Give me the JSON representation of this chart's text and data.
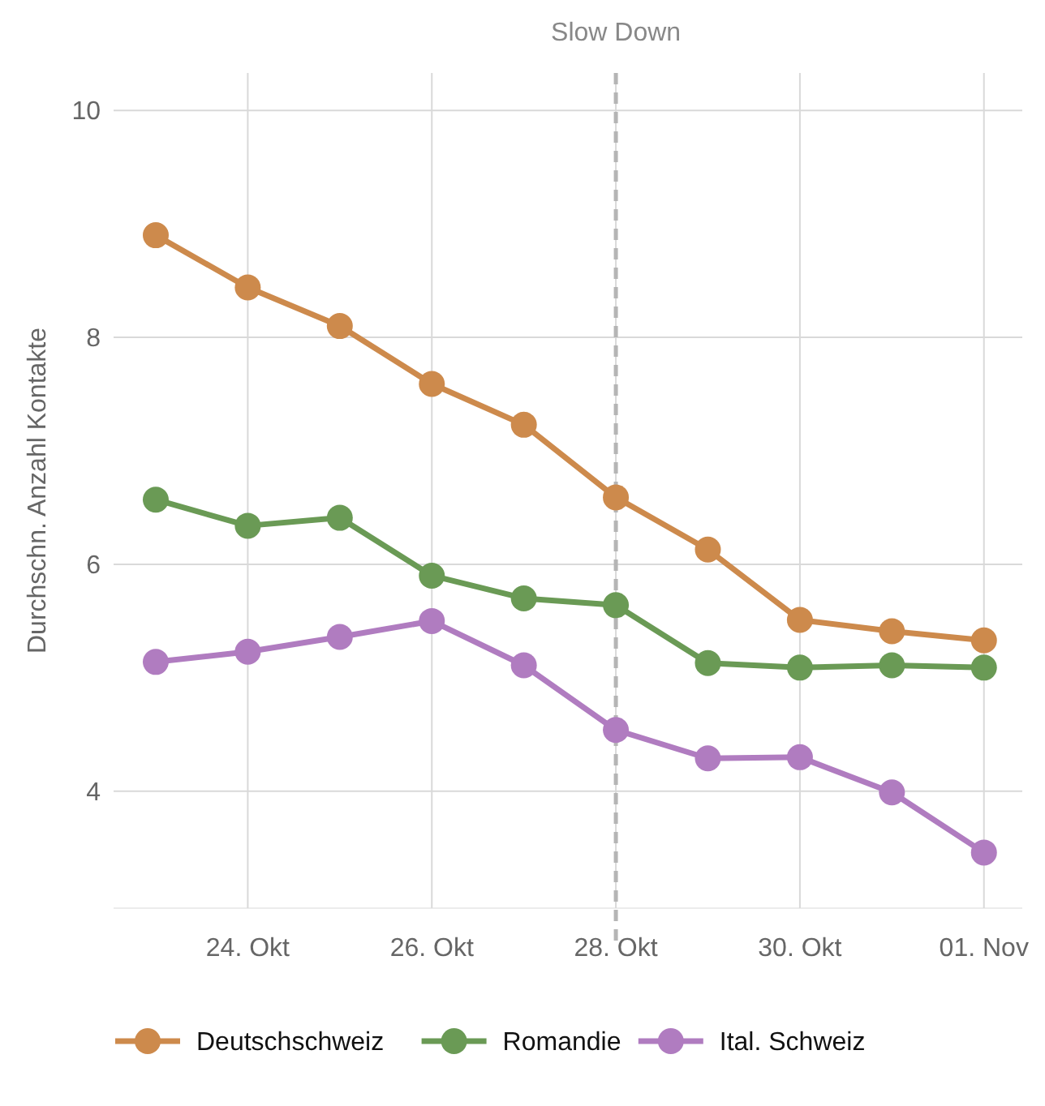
{
  "chart_data": {
    "type": "line",
    "ylabel": "Durchschn. Anzahl Kontakte",
    "x": [
      "--10-23",
      "--10-24",
      "--10-25",
      "--10-26",
      "--10-27",
      "--10-28",
      "--10-29",
      "--10-30",
      "--10-31",
      "--11-01"
    ],
    "series": [
      {
        "name": "Deutschschweiz",
        "color": "#cd8a4c",
        "values": [
          8.9,
          8.44,
          8.1,
          7.59,
          7.23,
          6.59,
          6.13,
          5.51,
          5.41,
          5.33
        ]
      },
      {
        "name": "Romandie",
        "color": "#6a9a55",
        "values": [
          6.57,
          6.34,
          6.41,
          5.9,
          5.7,
          5.64,
          5.13,
          5.09,
          5.11,
          5.09
        ]
      },
      {
        "name": "Ital. Schweiz",
        "color": "#b07cc0",
        "values": [
          5.14,
          5.23,
          5.36,
          5.5,
          5.11,
          4.54,
          4.29,
          4.3,
          3.99,
          3.46
        ]
      }
    ],
    "xlim": [
      "--10-22T13:00",
      "--11-01T10:00"
    ],
    "xticks": [
      {
        "value": "--10-24",
        "label": "24. Okt"
      },
      {
        "value": "--10-26",
        "label": "26. Okt"
      },
      {
        "value": "--10-28",
        "label": "28. Okt"
      },
      {
        "value": "--10-30",
        "label": "30. Okt"
      },
      {
        "value": "--11-01",
        "label": "01. Nov"
      }
    ],
    "ylim": [
      2.97,
      10.33
    ],
    "yticks": [
      4,
      6,
      8,
      10
    ],
    "ref_lines": [
      {
        "axis": "x",
        "value": "--10-28",
        "label": "Slow Down",
        "color": "#b5b5b5",
        "line_style": "dashed"
      }
    ],
    "grid": true,
    "legend": "bottom",
    "marker": "circle",
    "line_style": "solid"
  }
}
